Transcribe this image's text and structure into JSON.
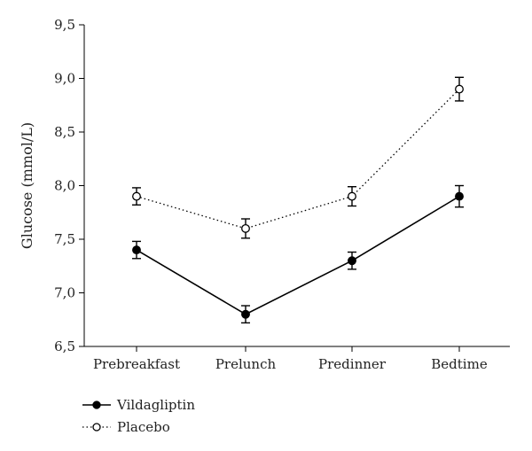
{
  "chart_data": {
    "type": "line",
    "categories": [
      "Prebreakfast",
      "Prelunch",
      "Predinner",
      "Bedtime"
    ],
    "ylabel": "Glucose (mmol/L)",
    "ylim": [
      6.5,
      9.5
    ],
    "yticks": [
      "6,5",
      "7,0",
      "7,5",
      "8,0",
      "8,5",
      "9,0",
      "9,5"
    ],
    "legend_position": "bottom-left",
    "series": [
      {
        "name": "Vildagliptin",
        "values": [
          7.4,
          6.8,
          7.3,
          7.9
        ],
        "error": [
          0.08,
          0.08,
          0.08,
          0.1
        ],
        "line": "solid",
        "marker": "filled-circle",
        "color": "#000000"
      },
      {
        "name": "Placebo",
        "values": [
          7.9,
          7.6,
          7.9,
          8.9
        ],
        "error": [
          0.08,
          0.09,
          0.09,
          0.11
        ],
        "line": "dotted",
        "marker": "open-circle",
        "color": "#000000"
      }
    ]
  }
}
